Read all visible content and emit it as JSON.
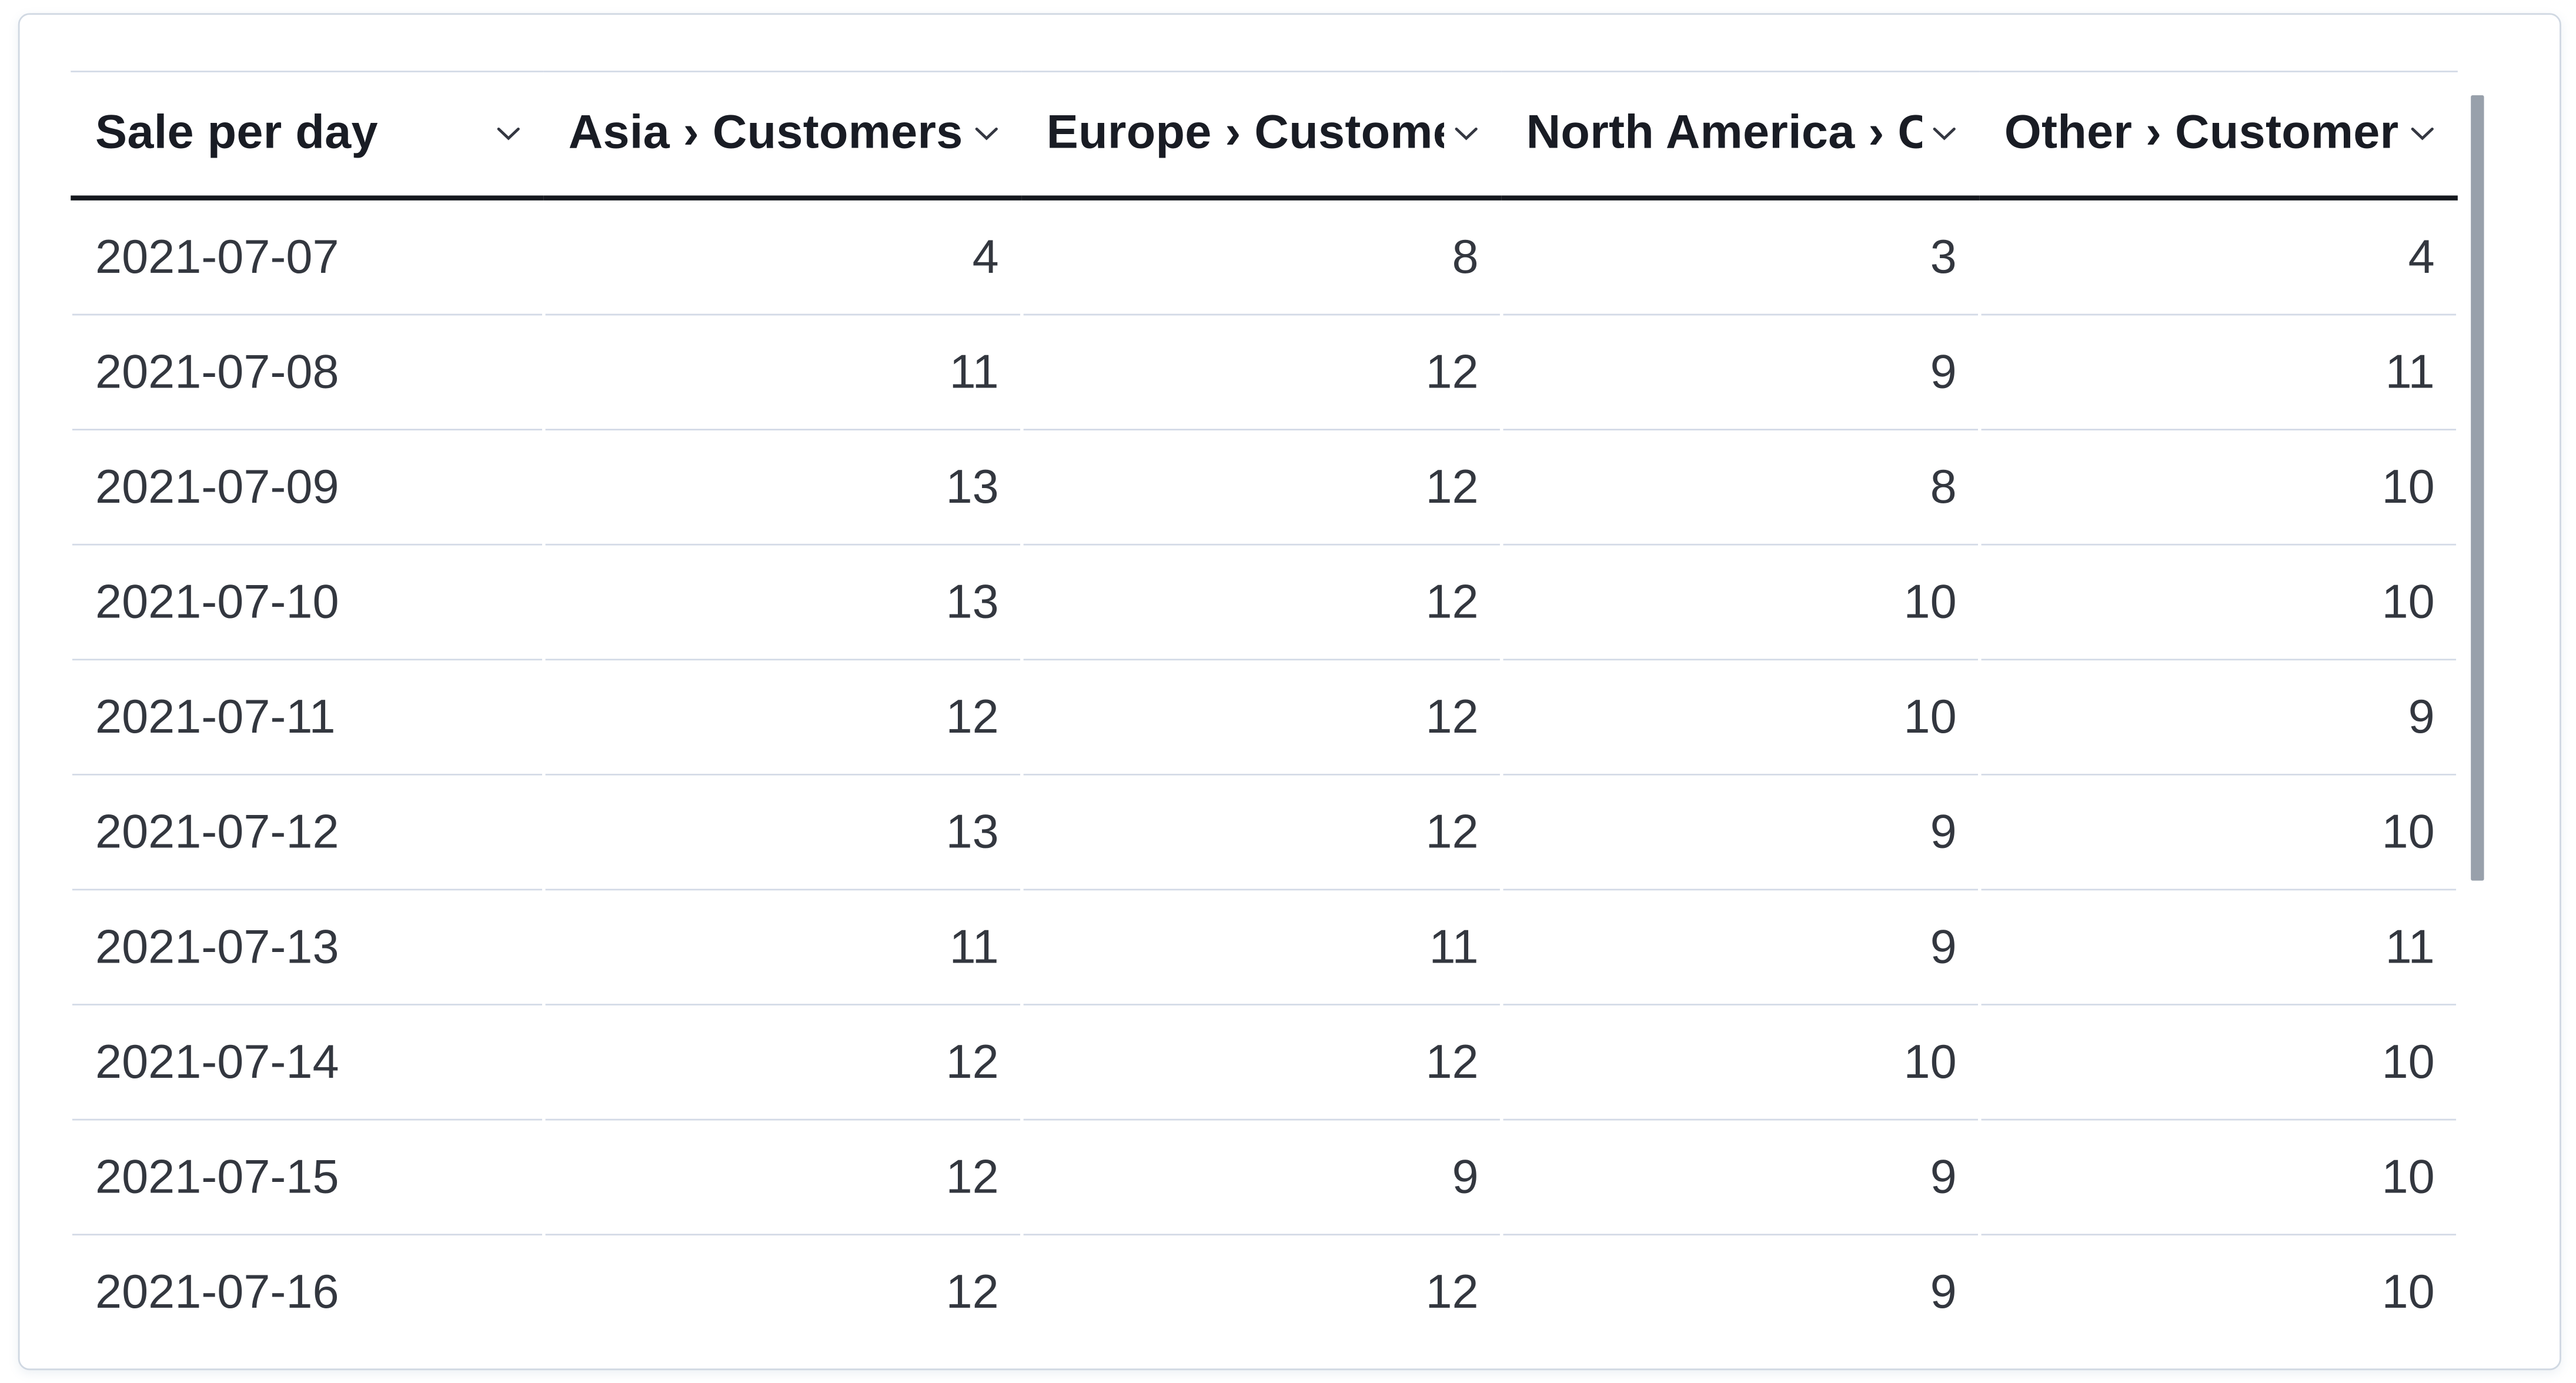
{
  "panel": {
    "type": "datatable"
  },
  "table": {
    "columns": [
      {
        "label": "Sale per day"
      },
      {
        "label": "Asia › Customers per day"
      },
      {
        "label": "Europe › Customers per day"
      },
      {
        "label": "North America › Customers per day"
      },
      {
        "label": "Other › Customers per day"
      }
    ],
    "rows": [
      {
        "date": "2021-07-07",
        "values": [
          4,
          8,
          3,
          4
        ]
      },
      {
        "date": "2021-07-08",
        "values": [
          11,
          12,
          9,
          11
        ]
      },
      {
        "date": "2021-07-09",
        "values": [
          13,
          12,
          8,
          10
        ]
      },
      {
        "date": "2021-07-10",
        "values": [
          13,
          12,
          10,
          10
        ]
      },
      {
        "date": "2021-07-11",
        "values": [
          12,
          12,
          10,
          9
        ]
      },
      {
        "date": "2021-07-12",
        "values": [
          13,
          12,
          9,
          10
        ]
      },
      {
        "date": "2021-07-13",
        "values": [
          11,
          11,
          9,
          11
        ]
      },
      {
        "date": "2021-07-14",
        "values": [
          12,
          12,
          10,
          10
        ]
      },
      {
        "date": "2021-07-15",
        "values": [
          12,
          9,
          9,
          10
        ]
      },
      {
        "date": "2021-07-16",
        "values": [
          12,
          12,
          9,
          10
        ]
      }
    ]
  },
  "icons": {
    "column_sort": "chevron-down-icon"
  },
  "scrollbar": {
    "orientation": "vertical",
    "thumb_color": "#98a0ab"
  },
  "colors": {
    "card_border": "#d0d8e2",
    "header_text": "#191c24",
    "body_text": "#33373f",
    "header_rule": "#15181e",
    "row_separator": "#d3dae6",
    "background": "#ffffff"
  }
}
